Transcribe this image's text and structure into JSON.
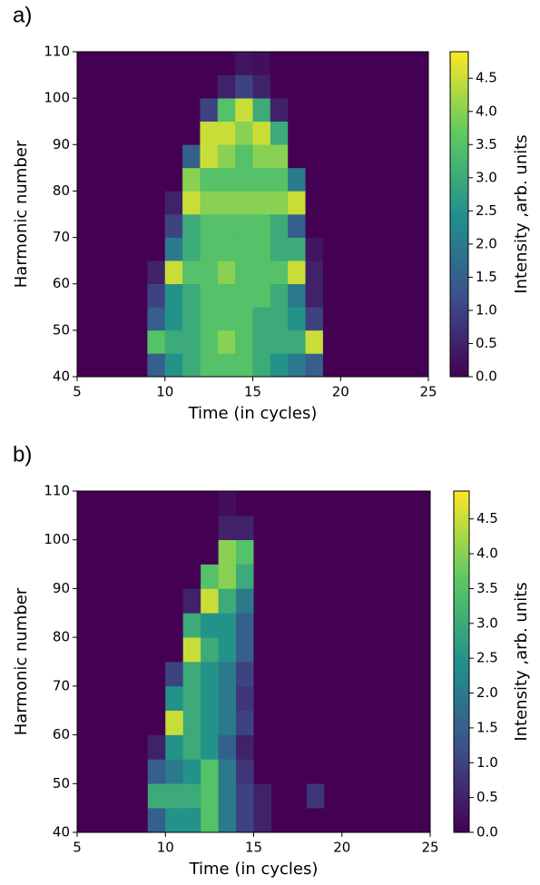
{
  "chart_data": [
    {
      "type": "heatmap",
      "panel_label": "a)",
      "xlabel": "Time (in cycles)",
      "ylabel": "Harmonic number",
      "colorbar_label": "Intensity ,arb. units",
      "xlim": [
        5,
        25
      ],
      "ylim": [
        40,
        110
      ],
      "xticks": [
        5,
        10,
        15,
        20,
        25
      ],
      "yticks": [
        40,
        50,
        60,
        70,
        80,
        90,
        100,
        110
      ],
      "clim": [
        0,
        4.9
      ],
      "cticks": [
        {
          "value": 0,
          "label": "0.0"
        },
        0.5,
        {
          "value": 1,
          "label": "1.0"
        },
        1.5,
        {
          "value": 2,
          "label": "2.0"
        },
        2.5,
        {
          "value": 3,
          "label": "3.0"
        },
        3.5,
        {
          "value": 4,
          "label": "4.0"
        },
        4.5
      ],
      "xbins": [
        5,
        6,
        7,
        8,
        9,
        10,
        11,
        12,
        13,
        14,
        15,
        16,
        17,
        18,
        19,
        20,
        21,
        22,
        23,
        24,
        25
      ],
      "ybins": [
        40,
        45,
        50,
        55,
        60,
        65,
        70,
        75,
        80,
        85,
        90,
        95,
        100,
        105,
        110
      ],
      "values": [
        [
          0,
          0,
          0,
          0,
          1.5,
          2.5,
          3,
          3.5,
          3.5,
          3.5,
          3,
          2.5,
          2,
          1.5,
          0,
          0,
          0,
          0,
          0,
          0
        ],
        [
          0,
          0,
          0,
          0,
          3.5,
          3,
          3,
          3.5,
          4,
          3.5,
          3,
          3,
          3,
          4.5,
          0,
          0,
          0,
          0,
          0,
          0
        ],
        [
          0,
          0,
          0,
          0,
          1.5,
          2.5,
          3,
          3.5,
          3.5,
          3.5,
          3,
          3,
          2.5,
          1,
          0,
          0,
          0,
          0,
          0,
          0
        ],
        [
          0,
          0,
          0,
          0,
          1,
          2.5,
          3,
          3.5,
          3.5,
          3.5,
          3.5,
          3,
          2,
          0.5,
          0,
          0,
          0,
          0,
          0,
          0
        ],
        [
          0,
          0,
          0,
          0,
          0.5,
          4.5,
          3.5,
          3.5,
          4,
          3.5,
          3.5,
          3.5,
          4.5,
          0.5,
          0,
          0,
          0,
          0,
          0,
          0
        ],
        [
          0,
          0,
          0,
          0,
          0,
          2,
          3,
          3.5,
          3.5,
          3.5,
          3.5,
          3,
          3,
          0.3,
          0,
          0,
          0,
          0,
          0,
          0
        ],
        [
          0,
          0,
          0,
          0,
          0,
          1,
          3,
          3.5,
          3.5,
          3.5,
          3.5,
          3,
          1.5,
          0,
          0,
          0,
          0,
          0,
          0,
          0
        ],
        [
          0,
          0,
          0,
          0,
          0,
          0.5,
          4.5,
          4,
          4,
          4,
          4,
          4,
          4.5,
          0,
          0,
          0,
          0,
          0,
          0,
          0
        ],
        [
          0,
          0,
          0,
          0,
          0,
          0,
          4,
          3.5,
          3.5,
          3.5,
          3.5,
          3.5,
          2,
          0,
          0,
          0,
          0,
          0,
          0,
          0
        ],
        [
          0,
          0,
          0,
          0,
          0,
          0,
          1.5,
          4.5,
          4,
          3.5,
          4,
          4,
          0,
          0,
          0,
          0,
          0,
          0,
          0,
          0
        ],
        [
          0,
          0,
          0,
          0,
          0,
          0,
          0,
          4.5,
          4.5,
          4,
          4.5,
          3,
          0,
          0,
          0,
          0,
          0,
          0,
          0,
          0
        ],
        [
          0,
          0,
          0,
          0,
          0,
          0,
          0,
          1,
          3.5,
          4.5,
          3,
          0.5,
          0,
          0,
          0,
          0,
          0,
          0,
          0,
          0
        ],
        [
          0,
          0,
          0,
          0,
          0,
          0,
          0,
          0,
          0.5,
          1,
          0.5,
          0,
          0,
          0,
          0,
          0,
          0,
          0,
          0,
          0
        ],
        [
          0,
          0,
          0,
          0,
          0,
          0,
          0,
          0,
          0,
          0.3,
          0.2,
          0,
          0,
          0,
          0,
          0,
          0,
          0,
          0,
          0
        ]
      ]
    },
    {
      "type": "heatmap",
      "panel_label": "b)",
      "xlabel": "Time (in cycles)",
      "ylabel": "Harmonic number",
      "colorbar_label": "Intensity ,arb. units",
      "xlim": [
        5,
        25
      ],
      "ylim": [
        40,
        110
      ],
      "xticks": [
        5,
        10,
        15,
        20,
        25
      ],
      "yticks": [
        40,
        50,
        60,
        70,
        80,
        90,
        100,
        110
      ],
      "clim": [
        0,
        4.9
      ],
      "cticks": [
        {
          "value": 0,
          "label": "0.0"
        },
        0.5,
        {
          "value": 1,
          "label": "1.0"
        },
        1.5,
        {
          "value": 2,
          "label": "2.0"
        },
        2.5,
        {
          "value": 3,
          "label": "3.0"
        },
        3.5,
        {
          "value": 4,
          "label": "4.0"
        },
        4.5
      ],
      "xbins": [
        5,
        6,
        7,
        8,
        9,
        10,
        11,
        12,
        13,
        14,
        15,
        16,
        17,
        18,
        19,
        20,
        21,
        22,
        23,
        24,
        25
      ],
      "ybins": [
        40,
        45,
        50,
        55,
        60,
        65,
        70,
        75,
        80,
        85,
        90,
        95,
        100,
        105,
        110
      ],
      "values": [
        [
          0,
          0,
          0,
          0,
          1.5,
          2.5,
          2.5,
          3.5,
          2,
          1,
          0.5,
          0,
          0,
          0,
          0,
          0,
          0,
          0,
          0,
          0
        ],
        [
          0,
          0,
          0,
          0,
          3,
          3,
          3,
          3.5,
          2,
          1,
          0.5,
          0,
          0,
          0.8,
          0,
          0,
          0,
          0,
          0,
          0
        ],
        [
          0,
          0,
          0,
          0,
          1.5,
          2,
          2.5,
          3.5,
          2,
          0.8,
          0,
          0,
          0,
          0,
          0,
          0,
          0,
          0,
          0,
          0
        ],
        [
          0,
          0,
          0,
          0,
          0.5,
          2.5,
          3,
          2.5,
          1.5,
          0.5,
          0,
          0,
          0,
          0,
          0,
          0,
          0,
          0,
          0,
          0
        ],
        [
          0,
          0,
          0,
          0,
          0,
          4.5,
          3,
          2.5,
          2,
          1,
          0,
          0,
          0,
          0,
          0,
          0,
          0,
          0,
          0,
          0
        ],
        [
          0,
          0,
          0,
          0,
          0,
          2.5,
          3,
          2.5,
          2,
          0.8,
          0,
          0,
          0,
          0,
          0,
          0,
          0,
          0,
          0,
          0
        ],
        [
          0,
          0,
          0,
          0,
          0,
          1,
          3,
          2.5,
          2,
          1,
          0,
          0,
          0,
          0,
          0,
          0,
          0,
          0,
          0,
          0
        ],
        [
          0,
          0,
          0,
          0,
          0,
          0,
          4.5,
          3,
          2.5,
          1.5,
          0,
          0,
          0,
          0,
          0,
          0,
          0,
          0,
          0,
          0
        ],
        [
          0,
          0,
          0,
          0,
          0,
          0,
          3,
          2.5,
          2.5,
          1.5,
          0,
          0,
          0,
          0,
          0,
          0,
          0,
          0,
          0,
          0
        ],
        [
          0,
          0,
          0,
          0,
          0,
          0,
          0.5,
          4.5,
          3,
          2,
          0,
          0,
          0,
          0,
          0,
          0,
          0,
          0,
          0,
          0
        ],
        [
          0,
          0,
          0,
          0,
          0,
          0,
          0,
          3.5,
          4,
          3,
          0,
          0,
          0,
          0,
          0,
          0,
          0,
          0,
          0,
          0
        ],
        [
          0,
          0,
          0,
          0,
          0,
          0,
          0,
          0,
          4,
          3.5,
          0,
          0,
          0,
          0,
          0,
          0,
          0,
          0,
          0,
          0
        ],
        [
          0,
          0,
          0,
          0,
          0,
          0,
          0,
          0,
          0.5,
          0.5,
          0,
          0,
          0,
          0,
          0,
          0,
          0,
          0,
          0,
          0
        ],
        [
          0,
          0,
          0,
          0,
          0,
          0,
          0,
          0,
          0.2,
          0,
          0,
          0,
          0,
          0,
          0,
          0,
          0,
          0,
          0,
          0
        ]
      ]
    }
  ]
}
